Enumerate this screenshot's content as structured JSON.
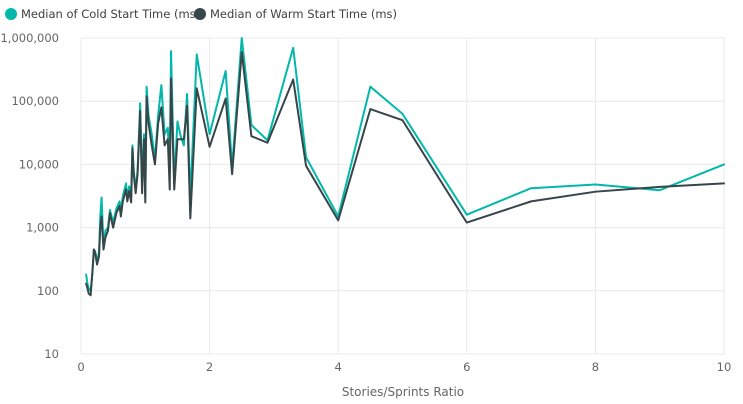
{
  "chart_data": {
    "type": "line",
    "title": "",
    "xlabel": "Stories/Sprints Ratio",
    "ylabel": "",
    "y_scale": "log",
    "ylim": [
      10,
      1000000
    ],
    "xlim": [
      0,
      10
    ],
    "x_ticks": [
      0,
      2,
      4,
      6,
      8,
      10
    ],
    "y_ticks": [
      10,
      100,
      1000,
      10000,
      100000,
      1000000
    ],
    "y_tick_labels": [
      "10",
      "100",
      "1,000",
      "10,000",
      "100,000",
      "1,000,000"
    ],
    "x_tick_labels": [
      "0",
      "2",
      "4",
      "6",
      "8",
      "10"
    ],
    "grid": true,
    "legend_position": "top-left",
    "series": [
      {
        "name": "Median of Cold Start Time (ms)",
        "color": "#01B8AA",
        "points": [
          [
            0.08,
            180
          ],
          [
            0.1,
            130
          ],
          [
            0.12,
            110
          ],
          [
            0.15,
            100
          ],
          [
            0.18,
            200
          ],
          [
            0.2,
            450
          ],
          [
            0.22,
            420
          ],
          [
            0.25,
            300
          ],
          [
            0.28,
            400
          ],
          [
            0.3,
            1500
          ],
          [
            0.32,
            3000
          ],
          [
            0.35,
            500
          ],
          [
            0.38,
            900
          ],
          [
            0.42,
            1000
          ],
          [
            0.45,
            1900
          ],
          [
            0.5,
            1200
          ],
          [
            0.55,
            2000
          ],
          [
            0.6,
            2600
          ],
          [
            0.62,
            1800
          ],
          [
            0.65,
            3100
          ],
          [
            0.7,
            5000
          ],
          [
            0.72,
            3000
          ],
          [
            0.75,
            4500
          ],
          [
            0.78,
            3000
          ],
          [
            0.8,
            20000
          ],
          [
            0.82,
            8000
          ],
          [
            0.85,
            4000
          ],
          [
            0.88,
            8000
          ],
          [
            0.92,
            93000
          ],
          [
            0.95,
            5000
          ],
          [
            0.98,
            30000
          ],
          [
            1.0,
            3000
          ],
          [
            1.02,
            170000
          ],
          [
            1.05,
            60000
          ],
          [
            1.1,
            30000
          ],
          [
            1.15,
            12000
          ],
          [
            1.2,
            60000
          ],
          [
            1.25,
            180000
          ],
          [
            1.3,
            30000
          ],
          [
            1.35,
            38000
          ],
          [
            1.38,
            8000
          ],
          [
            1.4,
            620000
          ],
          [
            1.45,
            5000
          ],
          [
            1.5,
            48000
          ],
          [
            1.55,
            28000
          ],
          [
            1.6,
            20000
          ],
          [
            1.65,
            130000
          ],
          [
            1.7,
            3000
          ],
          [
            1.8,
            550000
          ],
          [
            2.0,
            30000
          ],
          [
            2.25,
            300000
          ],
          [
            2.35,
            9000
          ],
          [
            2.5,
            1000000
          ],
          [
            2.65,
            42000
          ],
          [
            2.9,
            24000
          ],
          [
            3.3,
            700000
          ],
          [
            3.5,
            13000
          ],
          [
            4.0,
            1500
          ],
          [
            4.5,
            170000
          ],
          [
            5.0,
            63000
          ],
          [
            6.0,
            1600
          ],
          [
            7.0,
            4200
          ],
          [
            8.0,
            4800
          ],
          [
            9.0,
            3900
          ],
          [
            10.0,
            10000
          ]
        ]
      },
      {
        "name": "Median of Warm Start Time (ms)",
        "color": "#374649",
        "points": [
          [
            0.08,
            130
          ],
          [
            0.1,
            110
          ],
          [
            0.12,
            90
          ],
          [
            0.15,
            85
          ],
          [
            0.18,
            220
          ],
          [
            0.2,
            450
          ],
          [
            0.22,
            400
          ],
          [
            0.25,
            260
          ],
          [
            0.28,
            350
          ],
          [
            0.3,
            1000
          ],
          [
            0.32,
            1500
          ],
          [
            0.35,
            450
          ],
          [
            0.38,
            700
          ],
          [
            0.42,
            900
          ],
          [
            0.45,
            1700
          ],
          [
            0.5,
            1000
          ],
          [
            0.55,
            1700
          ],
          [
            0.6,
            2200
          ],
          [
            0.62,
            1500
          ],
          [
            0.65,
            2600
          ],
          [
            0.7,
            4000
          ],
          [
            0.72,
            2600
          ],
          [
            0.75,
            3800
          ],
          [
            0.78,
            2500
          ],
          [
            0.8,
            18000
          ],
          [
            0.82,
            7000
          ],
          [
            0.85,
            3500
          ],
          [
            0.88,
            7000
          ],
          [
            0.92,
            70000
          ],
          [
            0.95,
            3500
          ],
          [
            0.98,
            25000
          ],
          [
            1.0,
            2500
          ],
          [
            1.02,
            120000
          ],
          [
            1.05,
            45000
          ],
          [
            1.1,
            20000
          ],
          [
            1.15,
            10000
          ],
          [
            1.2,
            45000
          ],
          [
            1.25,
            80000
          ],
          [
            1.3,
            20000
          ],
          [
            1.35,
            25000
          ],
          [
            1.38,
            4000
          ],
          [
            1.4,
            230000
          ],
          [
            1.45,
            4000
          ],
          [
            1.5,
            25000
          ],
          [
            1.55,
            25000
          ],
          [
            1.6,
            25000
          ],
          [
            1.65,
            85000
          ],
          [
            1.7,
            1400
          ],
          [
            1.8,
            160000
          ],
          [
            2.0,
            19000
          ],
          [
            2.25,
            110000
          ],
          [
            2.35,
            7000
          ],
          [
            2.5,
            600000
          ],
          [
            2.65,
            28000
          ],
          [
            2.9,
            22000
          ],
          [
            3.3,
            220000
          ],
          [
            3.5,
            9500
          ],
          [
            4.0,
            1300
          ],
          [
            4.5,
            75000
          ],
          [
            5.0,
            50000
          ],
          [
            6.0,
            1200
          ],
          [
            7.0,
            2600
          ],
          [
            8.0,
            3700
          ],
          [
            9.0,
            4400
          ],
          [
            10.0,
            5000
          ]
        ]
      }
    ]
  }
}
